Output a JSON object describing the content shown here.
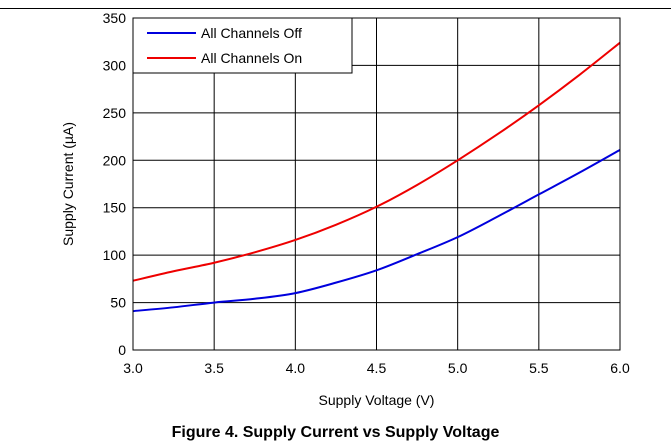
{
  "caption": "Figure 4. Supply Current vs Supply Voltage",
  "colors": {
    "off": "#0000dd",
    "on": "#ee0000",
    "grid": "#000000"
  },
  "chart_data": {
    "type": "line",
    "title": "",
    "xlabel": "Supply Voltage (V)",
    "ylabel": "Supply Current (µA)",
    "xlim": [
      3.0,
      6.0
    ],
    "ylim": [
      0,
      350
    ],
    "xticks": [
      "3.0",
      "3.5",
      "4.0",
      "4.5",
      "5.0",
      "5.5",
      "6.0"
    ],
    "yticks": [
      "0",
      "50",
      "100",
      "150",
      "200",
      "250",
      "300",
      "350"
    ],
    "grid": true,
    "legend_position": "top-left",
    "series": [
      {
        "name": "All Channels Off",
        "color": "#0000dd",
        "x": [
          3.0,
          3.25,
          3.5,
          3.75,
          4.0,
          4.25,
          4.5,
          4.75,
          5.0,
          5.25,
          5.5,
          5.75,
          6.0
        ],
        "y": [
          41,
          45,
          50,
          54,
          60,
          71,
          84,
          101,
          119,
          141,
          164,
          187,
          211
        ]
      },
      {
        "name": "All Channels On",
        "color": "#ee0000",
        "x": [
          3.0,
          3.25,
          3.5,
          3.75,
          4.0,
          4.25,
          4.5,
          4.75,
          5.0,
          5.25,
          5.5,
          5.75,
          6.0
        ],
        "y": [
          73,
          83,
          92,
          103,
          116,
          132,
          151,
          174,
          200,
          228,
          258,
          290,
          324
        ]
      }
    ]
  }
}
